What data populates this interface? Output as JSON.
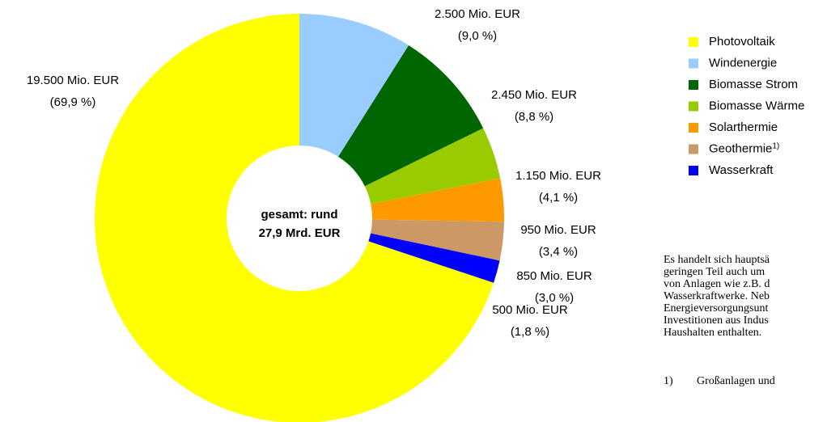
{
  "chart_data": {
    "type": "donut",
    "categories": [
      "Photovoltaik",
      "Windenergie",
      "Biomasse Strom",
      "Biomasse Wärme",
      "Solarthermie",
      "Geothermie",
      "Wasserkraft"
    ],
    "category_notes": [
      null,
      null,
      null,
      null,
      null,
      "1)",
      null
    ],
    "values": [
      19500,
      2500,
      2450,
      1150,
      950,
      850,
      500
    ],
    "value_labels": [
      "19.500 Mio. EUR",
      "2.500 Mio. EUR",
      "2.450 Mio. EUR",
      "1.150 Mio. EUR",
      "950 Mio. EUR",
      "850 Mio. EUR",
      "500 Mio. EUR"
    ],
    "share_labels": [
      "(69,9 %)",
      "(9,0 %)",
      "(8,8 %)",
      "(4,1 %)",
      "(3,4 %)",
      "(3,0 %)",
      "(1,8 %)"
    ],
    "colors": [
      "#ffff00",
      "#99ccff",
      "#006600",
      "#99cc00",
      "#ff9900",
      "#cc9966",
      "#0000ff"
    ],
    "center_label": [
      "gesamt: rund",
      "27,9 Mrd. EUR"
    ],
    "note_lines": [
      "Es handelt sich hauptsä",
      "geringen Teil auch um",
      "von Anlagen wie z.B. d",
      "Wasserkraftwerke. Neb",
      "Energieversorgungsunt",
      "Investitionen aus Indus",
      "Haushalten enthalten."
    ],
    "footnote_marker": "1)",
    "footnote_text": "Großanlagen und"
  }
}
